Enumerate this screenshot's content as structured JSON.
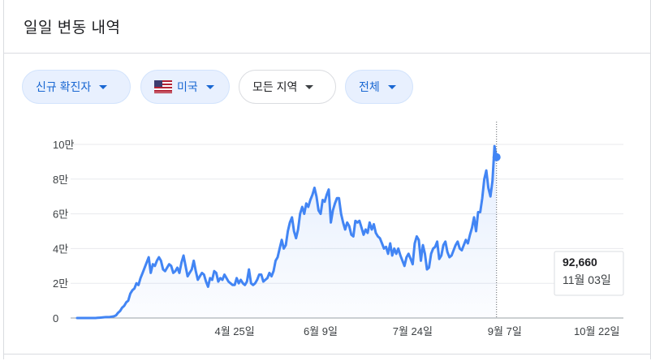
{
  "header": {
    "title": "일일 변동 내역"
  },
  "filters": {
    "metric": "신규 확진자",
    "country": "미국",
    "country_flag_icon": "us-flag-icon",
    "region": "모든 지역",
    "range": "전체"
  },
  "colors": {
    "line": "#4285f4",
    "area_fill": "#4285f4",
    "chip_bg": "#e8f0fe",
    "chip_text": "#1967d2"
  },
  "tooltip": {
    "value": "92,660",
    "date": "11월 03일"
  },
  "chart_data": {
    "type": "line",
    "title": "",
    "xlabel": "",
    "ylabel": "",
    "ylim": [
      0,
      100000
    ],
    "y_ticks": [
      {
        "value": 0,
        "label": "0"
      },
      {
        "value": 20000,
        "label": "2만"
      },
      {
        "value": 40000,
        "label": "4만"
      },
      {
        "value": 60000,
        "label": "6만"
      },
      {
        "value": 80000,
        "label": "8만"
      },
      {
        "value": 100000,
        "label": "10만"
      }
    ],
    "x_ticks": [
      {
        "day": 77,
        "label": "4월 25일"
      },
      {
        "day": 119,
        "label": "6월 9일"
      },
      {
        "day": 164,
        "label": "7월 24일"
      },
      {
        "day": 209,
        "label": "9월 7일"
      },
      {
        "day": 254,
        "label": "10월 22일"
      }
    ],
    "x_range": [
      0,
      267
    ],
    "series": [
      {
        "start_day": 0,
        "values": [
          0,
          0,
          0,
          0,
          0,
          0,
          0,
          0,
          0,
          0,
          100,
          200,
          300,
          400,
          500,
          500,
          600,
          800,
          1000,
          1500,
          3000,
          4000,
          6000,
          7000,
          9000,
          10000,
          14000,
          16000,
          17000,
          20000,
          19000,
          23000,
          26000,
          29000,
          32000,
          35000,
          26000,
          31000,
          30000,
          33000,
          35000,
          33000,
          28000,
          27000,
          29000,
          31000,
          30000,
          26000,
          27000,
          29000,
          26000,
          32000,
          36000,
          30000,
          24000,
          26000,
          28000,
          33000,
          27000,
          22000,
          24000,
          26000,
          25000,
          21000,
          18000,
          23000,
          22000,
          27000,
          26000,
          21000,
          23000,
          22000,
          25000,
          23000,
          21000,
          20000,
          19000,
          19000,
          23000,
          20000,
          22000,
          20000,
          19000,
          21000,
          28000,
          20000,
          19000,
          20000,
          22000,
          25000,
          25000,
          21000,
          22000,
          23000,
          26000,
          24000,
          27000,
          33000,
          35000,
          40000,
          45000,
          40000,
          42000,
          50000,
          55000,
          58000,
          50000,
          46000,
          51000,
          60000,
          64000,
          60000,
          66000,
          64000,
          68000,
          71000,
          75000,
          70000,
          62000,
          60000,
          68000,
          67000,
          71000,
          74000,
          55000,
          62000,
          66000,
          69000,
          69000,
          60000,
          55000,
          51000,
          55000,
          53000,
          48000,
          47000,
          56000,
          55000,
          56000,
          52000,
          48000,
          51000,
          49000,
          55000,
          51000,
          54000,
          49000,
          47000,
          46000,
          43000,
          40000,
          41000,
          37000,
          43000,
          36000,
          40000,
          37000,
          40000,
          36000,
          33000,
          30000,
          35000,
          37000,
          34000,
          31000,
          43000,
          47000,
          45000,
          33000,
          42000,
          37000,
          28000,
          29000,
          37000,
          40000,
          41000,
          44000,
          34000,
          36000,
          42000,
          44000,
          38000,
          35000,
          36000,
          39000,
          42000,
          44000,
          40000,
          39000,
          42000,
          45000,
          43000,
          48000,
          52000,
          58000,
          50000,
          61000,
          61000,
          69000,
          80000,
          85000,
          75000,
          70000,
          79000,
          99000,
          92660
        ]
      }
    ]
  }
}
